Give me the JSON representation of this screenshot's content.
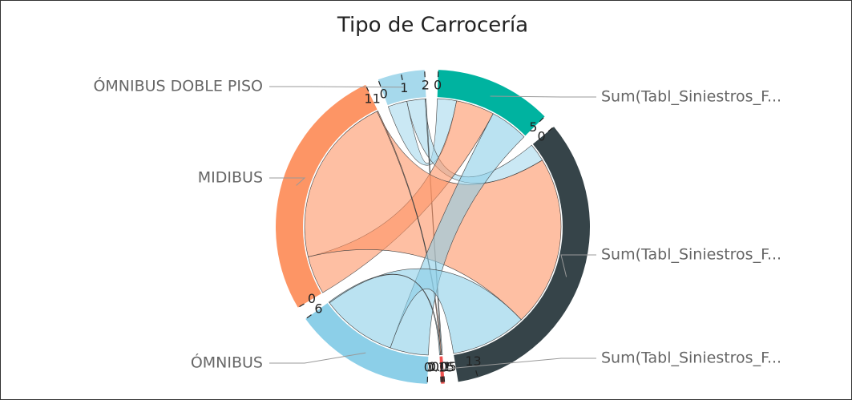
{
  "chart_data": {
    "type": "chord",
    "title": "Tipo de Carrocería",
    "sources": [
      {
        "name": "ÓMNIBUS DOBLE PISO",
        "color": "#a6d9ec",
        "values": [
          1,
          0.95,
          0.05
        ],
        "ticks": [
          0,
          1,
          2
        ]
      },
      {
        "name": "MIDIBUS",
        "color": "#fd9565",
        "values": [
          2,
          8.95,
          0.05
        ],
        "ticks": [
          0,
          11
        ]
      },
      {
        "name": "ÓMNIBUS",
        "color": "#8ccfe8",
        "values": [
          2,
          3.95,
          0.05
        ],
        "ticks": [
          0,
          6
        ]
      }
    ],
    "targets": [
      {
        "name": "Sum(Tabl_Siniestros_F...",
        "color": "#00b3a0",
        "ticks": [
          0,
          5
        ]
      },
      {
        "name": "Sum(Tabl_Siniestros_F...",
        "color": "#364449",
        "ticks": [
          0,
          13
        ]
      },
      {
        "name": "Sum(Tabl_Siniestros_F...",
        "color": "#f0524f",
        "ticks": [
          0,
          0.05,
          0.1,
          0.15
        ]
      }
    ]
  }
}
